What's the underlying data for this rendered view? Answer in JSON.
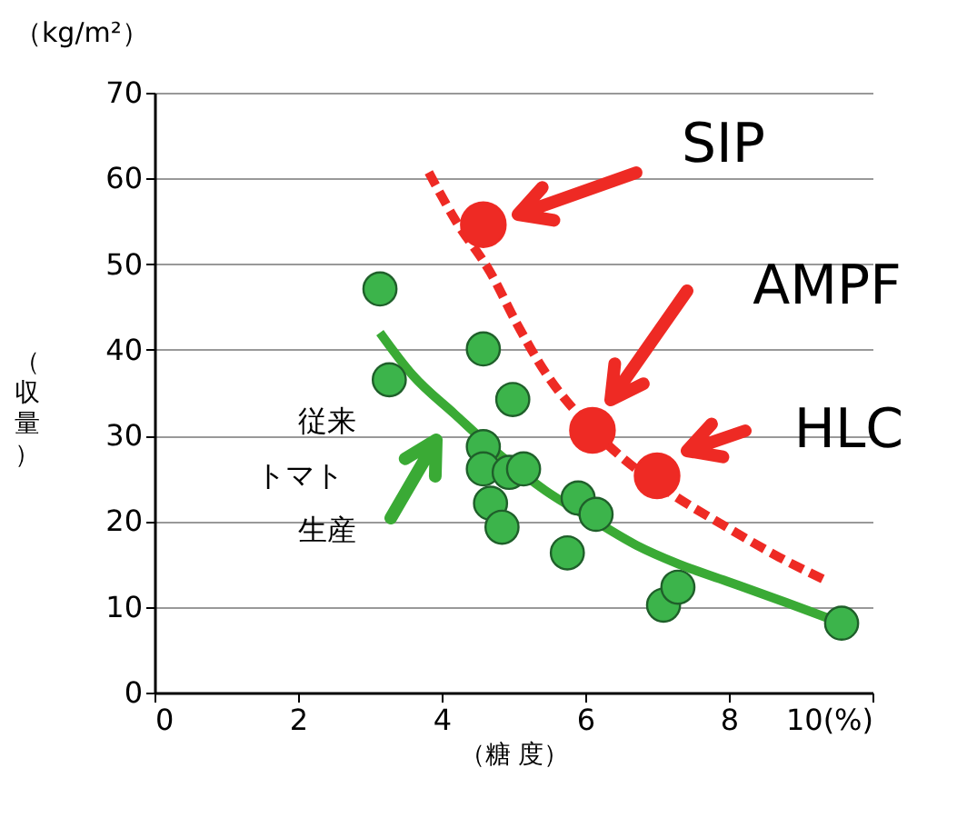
{
  "chart_data": {
    "type": "scatter",
    "xlabel": "（糖 度）",
    "ylabel": "（収量）",
    "xlim": [
      0,
      10
    ],
    "ylim": [
      0,
      70
    ],
    "xticks": [
      0,
      2,
      4,
      6,
      8,
      {
        "value": 10,
        "label": "10(%)"
      }
    ],
    "yticks": [
      0,
      10,
      20,
      30,
      40,
      50,
      60,
      70
    ],
    "grid": "y",
    "series": [
      {
        "type": "line",
        "color": "#3aaa35",
        "line_style": "solid",
        "x": [
          3.14,
          3.6,
          4.18,
          4.8,
          5.44,
          6.1,
          6.71,
          7.3,
          7.97,
          8.8,
          9.57
        ],
        "values": [
          42,
          37,
          32.5,
          27.8,
          23.6,
          20.2,
          17.2,
          15,
          13,
          10.5,
          8.1
        ]
      },
      {
        "type": "line",
        "color": "#ee2a24",
        "line_style": "dashed",
        "x": [
          3.82,
          4.2,
          4.68,
          5.05,
          5.44,
          5.95,
          6.46,
          7.2,
          7.97,
          8.7,
          9.37
        ],
        "values": [
          60.7,
          55,
          49,
          43,
          37.4,
          32,
          27.8,
          23.2,
          19.3,
          15.8,
          13
        ]
      },
      {
        "color": "#3cb44b",
        "marker": "circle",
        "x": [
          3.14,
          3.27,
          4.58,
          4.99,
          4.58,
          4.58,
          4.94,
          5.14,
          4.68,
          4.84,
          5.9,
          6.15,
          5.75,
          7.09,
          7.29,
          9.57
        ],
        "values": [
          47.1,
          36.5,
          40.1,
          34.2,
          28.7,
          26.1,
          25.7,
          26.1,
          22.1,
          19.3,
          22.7,
          20.8,
          16.3,
          10.2,
          12.3,
          8.1
        ]
      },
      {
        "color": "#ee2a24",
        "marker": "circle",
        "x": [
          4.58,
          6.1,
          7.0
        ],
        "values": [
          54.6,
          30.6,
          25.3
        ]
      }
    ],
    "annotations": [
      "SIP",
      "AMPF",
      "HLC",
      "従来",
      "トマト",
      "生産",
      "（kg/m²）"
    ]
  }
}
